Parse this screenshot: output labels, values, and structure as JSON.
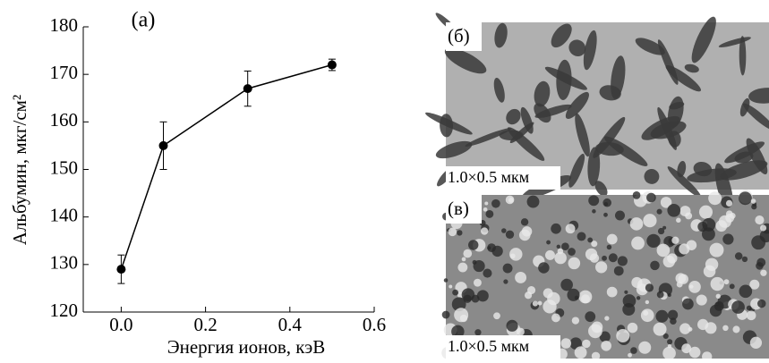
{
  "chart_data": {
    "type": "line",
    "title": "(a)",
    "x_label": "Энергия ионов, кэВ",
    "y_label": "Альбумин, мкг/см²",
    "x": [
      0,
      0.1,
      0.3,
      0.5
    ],
    "series": [
      {
        "values": [
          129,
          155,
          167,
          172
        ],
        "errors": [
          3,
          5,
          3.7,
          1.2
        ],
        "color": "#000000"
      }
    ],
    "xlim": [
      -0.09,
      0.6
    ],
    "ylim": [
      120,
      180
    ],
    "xticks": [
      {
        "value": 0,
        "label": "0.0"
      },
      0.2,
      0.4,
      0.6
    ],
    "yticks": [
      120,
      130,
      140,
      150,
      160,
      170,
      180
    ]
  },
  "images": [
    {
      "label": "(б)",
      "scale": "1.0×0.5 мкм"
    },
    {
      "label": "(в)",
      "scale": "1.0×0.5 мкм"
    }
  ]
}
